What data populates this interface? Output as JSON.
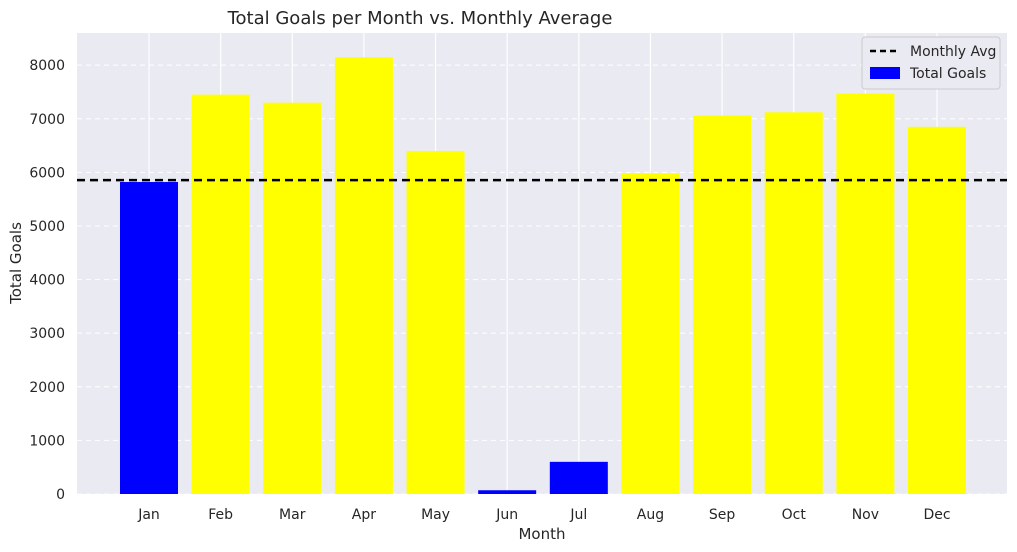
{
  "chart_data": {
    "type": "bar",
    "title": "Total Goals per Month vs. Monthly Average",
    "xlabel": "Month",
    "ylabel": "Total Goals",
    "categories": [
      "Jan",
      "Feb",
      "Mar",
      "Apr",
      "May",
      "Jun",
      "Jul",
      "Aug",
      "Sep",
      "Oct",
      "Nov",
      "Dec"
    ],
    "values": [
      5820,
      7450,
      7300,
      8150,
      6400,
      70,
      600,
      5980,
      7060,
      7120,
      7470,
      6850
    ],
    "bar_colors": [
      "#0000ff",
      "#ffff00",
      "#ffff00",
      "#ffff00",
      "#ffff00",
      "#0000ff",
      "#0000ff",
      "#ffff00",
      "#ffff00",
      "#ffff00",
      "#ffff00",
      "#ffff00"
    ],
    "average": 5855,
    "average_color": "#000000",
    "ylim": [
      0,
      8600
    ],
    "yticks": [
      0,
      1000,
      2000,
      3000,
      4000,
      5000,
      6000,
      7000,
      8000
    ],
    "grid": true,
    "background_color": "#eaeaf2",
    "legend": {
      "placement": "top-right",
      "entries": [
        {
          "label": "Monthly Avg",
          "style": "dashed-line",
          "color": "#000000"
        },
        {
          "label": "Total Goals",
          "style": "patch",
          "color": "#0000ff"
        }
      ]
    }
  }
}
